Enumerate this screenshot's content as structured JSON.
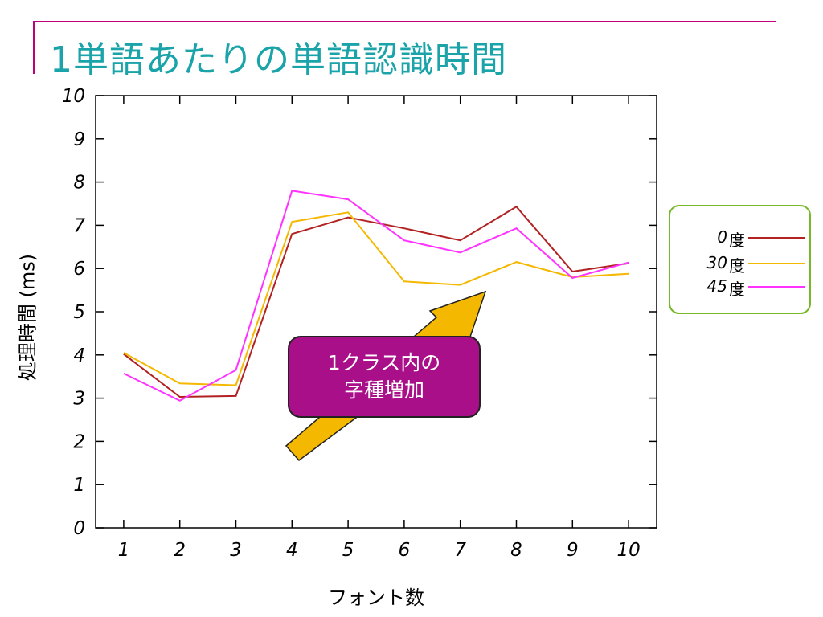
{
  "slide": {
    "title": "1単語あたりの単語認識時間"
  },
  "legend": {
    "items": [
      {
        "label": "0",
        "unit": "度",
        "color": "#b22222"
      },
      {
        "label": "30",
        "unit": "度",
        "color": "#f5b800"
      },
      {
        "label": "45",
        "unit": "度",
        "color": "#ff33ff"
      }
    ]
  },
  "callout": {
    "line1": "1クラス内の",
    "line2": "字種増加",
    "color": "#a80f88",
    "arrow_color": "#f5b800"
  },
  "chart_data": {
    "type": "line",
    "x": [
      1,
      2,
      3,
      4,
      5,
      6,
      7,
      8,
      9,
      10
    ],
    "xlabel": "フォント数",
    "ylabel": "処理時間 (ms)",
    "xlim": [
      0.5,
      10.5
    ],
    "ylim": [
      0,
      10
    ],
    "x_ticks": [
      "1",
      "2",
      "3",
      "4",
      "5",
      "6",
      "7",
      "8",
      "9",
      "10"
    ],
    "y_ticks": [
      "0",
      "1",
      "2",
      "3",
      "4",
      "5",
      "6",
      "7",
      "8",
      "9",
      "10"
    ],
    "grid": false,
    "legend_position": "right",
    "series": [
      {
        "name": "0 度",
        "color": "#b22222",
        "values": [
          4.02,
          3.03,
          3.05,
          6.8,
          7.18,
          6.93,
          6.65,
          7.43,
          5.93,
          6.12
        ]
      },
      {
        "name": "30 度",
        "color": "#f5b800",
        "values": [
          4.05,
          3.34,
          3.3,
          7.08,
          7.3,
          5.7,
          5.62,
          6.15,
          5.8,
          5.88
        ]
      },
      {
        "name": "45 度",
        "color": "#ff33ff",
        "values": [
          3.57,
          2.94,
          3.65,
          7.8,
          7.6,
          6.65,
          6.37,
          6.93,
          5.78,
          6.14
        ]
      }
    ]
  }
}
